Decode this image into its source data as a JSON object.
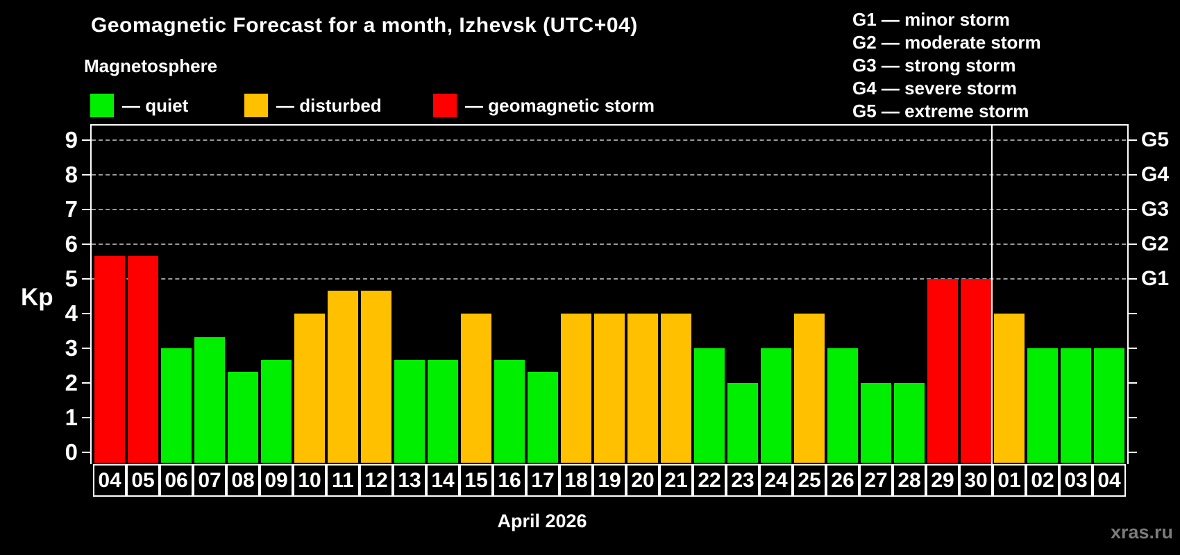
{
  "title": "Geomagnetic Forecast for a month, Izhevsk (UTC+04)",
  "subtitle": "Magnetosphere",
  "legend": {
    "quiet": "— quiet",
    "disturbed": "— disturbed",
    "storm": "— geomagnetic storm"
  },
  "storm_scale": [
    "G1 — minor storm",
    "G2 — moderate storm",
    "G3 — strong storm",
    "G4 — severe storm",
    "G5 — extreme storm"
  ],
  "colors": {
    "quiet": "#00EE00",
    "disturbed": "#FFC000",
    "storm": "#FF0000",
    "grid": "#9a9a9a",
    "axis": "#ffffff",
    "watermark": "#7b7b7b"
  },
  "watermark": "xras.ru",
  "chart_data": {
    "type": "bar",
    "title": "Geomagnetic Forecast for a month, Izhevsk (UTC+04)",
    "xlabel": "April 2026",
    "ylabel": "Kp",
    "ylim": [
      0,
      9.45
    ],
    "yticks": [
      0,
      1,
      2,
      3,
      4,
      5,
      6,
      7,
      8,
      9
    ],
    "gridlines_at": [
      5,
      6,
      7,
      8,
      9
    ],
    "grid": "dashed horizontal, only at Kp 5-9",
    "legend_position": "top-left (magnetosphere states), top-right (G storm scale)",
    "right_axis_labels": [
      {
        "label": "G1",
        "value": 5
      },
      {
        "label": "G2",
        "value": 6
      },
      {
        "label": "G3",
        "value": 7
      },
      {
        "label": "G4",
        "value": 8
      },
      {
        "label": "G5",
        "value": 9
      }
    ],
    "categories": [
      "04",
      "05",
      "06",
      "07",
      "08",
      "09",
      "10",
      "11",
      "12",
      "13",
      "14",
      "15",
      "16",
      "17",
      "18",
      "19",
      "20",
      "21",
      "22",
      "23",
      "24",
      "25",
      "26",
      "27",
      "28",
      "29",
      "30",
      "01",
      "02",
      "03",
      "04"
    ],
    "values": [
      5.67,
      5.67,
      3.0,
      3.33,
      2.33,
      2.67,
      4.0,
      4.67,
      4.67,
      2.67,
      2.67,
      4.0,
      2.67,
      2.33,
      4.0,
      4.0,
      4.0,
      4.0,
      3.0,
      2.0,
      3.0,
      4.0,
      3.0,
      2.0,
      2.0,
      5.0,
      5.0,
      4.0,
      3.0,
      3.0,
      3.0
    ],
    "statuses": [
      "storm",
      "storm",
      "quiet",
      "quiet",
      "quiet",
      "quiet",
      "disturbed",
      "disturbed",
      "disturbed",
      "quiet",
      "quiet",
      "disturbed",
      "quiet",
      "quiet",
      "disturbed",
      "disturbed",
      "disturbed",
      "disturbed",
      "quiet",
      "quiet",
      "quiet",
      "disturbed",
      "quiet",
      "quiet",
      "quiet",
      "storm",
      "storm",
      "disturbed",
      "quiet",
      "quiet",
      "quiet"
    ],
    "month_separator_after_index": 26
  }
}
